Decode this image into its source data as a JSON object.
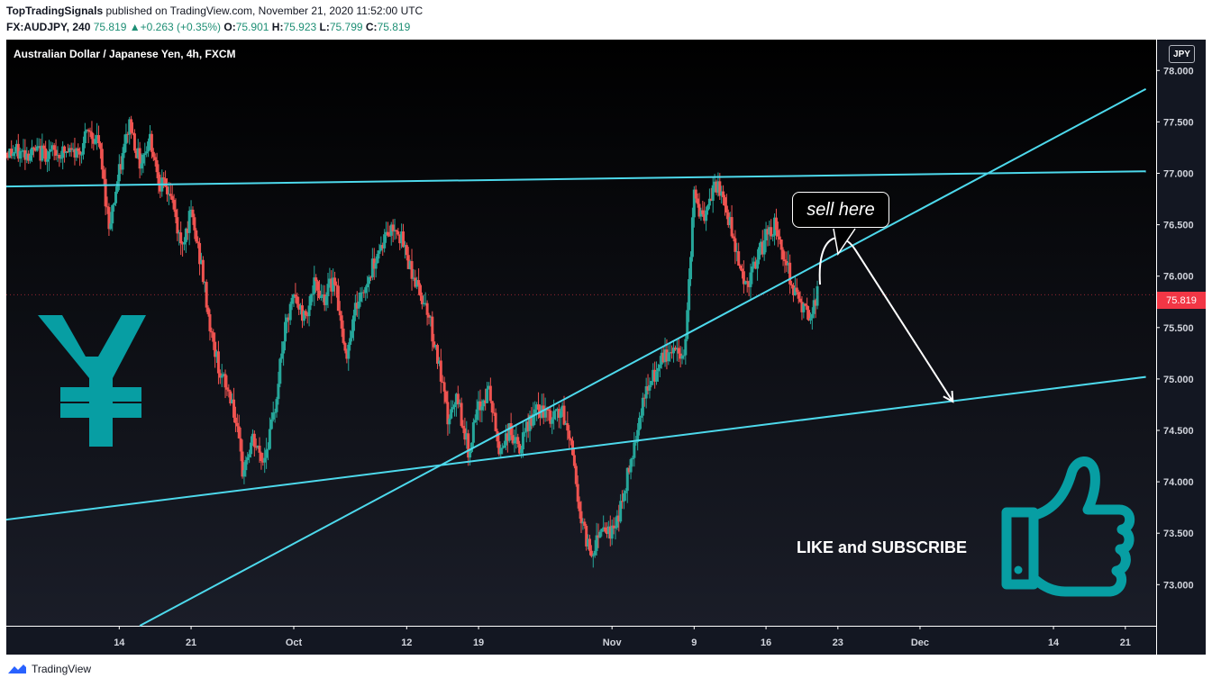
{
  "header": {
    "publisher": "TopTradingSignals",
    "published_text": " published on TradingView.com, November 21, 2020 11:52:00 UTC",
    "symbol_interval": "FX:AUDJPY, 240",
    "last": "75.819",
    "change_icon": "triangle-up-icon",
    "change": "+0.263 (+0.35%)",
    "o_label": "O:",
    "o_value": "75.901",
    "h_label": "H:",
    "h_value": "75.923",
    "l_label": "L:",
    "l_value": "75.799",
    "c_label": "C:",
    "c_value": "75.819"
  },
  "chart_title": "Australian Dollar / Japanese Yen, 4h, FXCM",
  "currency_label": "JPY",
  "price_tag": "75.819",
  "annotations": {
    "sell_text": "sell here",
    "like_text": "LIKE and SUBSCRIBE",
    "yen_icon": "yen-icon",
    "thumbs_up_icon": "thumbs-up-icon",
    "accent_color": "#079ea3"
  },
  "footer": {
    "brand": "TradingView"
  },
  "colors": {
    "background": "#131722",
    "up": "#26a69a",
    "down": "#ef5350",
    "trendline": "#4dd9ec",
    "arrow": "#ffffff",
    "price_tag": "#f23645"
  },
  "chart_data": {
    "type": "candlestick",
    "symbol": "FX:AUDJPY",
    "interval": "240",
    "ylim": [
      72.6,
      78.3
    ],
    "y_ticks": [
      73.0,
      73.5,
      74.0,
      74.5,
      75.0,
      75.5,
      76.0,
      76.5,
      77.0,
      77.5,
      78.0
    ],
    "y_tick_labels": [
      "73.000",
      "73.500",
      "74.000",
      "74.500",
      "75.000",
      "75.500",
      "76.000",
      "76.500",
      "77.000",
      "77.500",
      "78.000"
    ],
    "x_ticks": [
      "14",
      "21",
      "Oct",
      "12",
      "19",
      "Nov",
      "9",
      "16",
      "23",
      "Dec",
      "14",
      "21"
    ],
    "last_price": 75.819,
    "close_path": [
      {
        "x": "Sep 10",
        "price": 77.2
      },
      {
        "x": "Sep 11",
        "price": 77.4
      },
      {
        "x": "Sep 12",
        "price": 77.3
      },
      {
        "x": "Sep 13",
        "price": 76.5
      },
      {
        "x": "Sep 14",
        "price": 77.0
      },
      {
        "x": "Sep 15",
        "price": 77.5
      },
      {
        "x": "Sep 16",
        "price": 77.1
      },
      {
        "x": "Sep 17",
        "price": 77.35
      },
      {
        "x": "Sep 18",
        "price": 76.9
      },
      {
        "x": "Sep 19",
        "price": 76.8
      },
      {
        "x": "Sep 20",
        "price": 76.3
      },
      {
        "x": "Sep 21",
        "price": 76.6
      },
      {
        "x": "Sep 22",
        "price": 76.1
      },
      {
        "x": "Sep 23",
        "price": 75.4
      },
      {
        "x": "Sep 24",
        "price": 75.0
      },
      {
        "x": "Sep 25",
        "price": 74.8
      },
      {
        "x": "Sep 26",
        "price": 74.1
      },
      {
        "x": "Sep 27",
        "price": 74.4
      },
      {
        "x": "Sep 28",
        "price": 74.2
      },
      {
        "x": "Sep 29",
        "price": 74.6
      },
      {
        "x": "Sep 30",
        "price": 75.4
      },
      {
        "x": "Oct 1",
        "price": 75.8
      },
      {
        "x": "Oct 2",
        "price": 75.6
      },
      {
        "x": "Oct 3",
        "price": 75.9
      },
      {
        "x": "Oct 4",
        "price": 75.8
      },
      {
        "x": "Oct 5",
        "price": 76.0
      },
      {
        "x": "Oct 6",
        "price": 75.2
      },
      {
        "x": "Oct 7",
        "price": 75.7
      },
      {
        "x": "Oct 8",
        "price": 75.9
      },
      {
        "x": "Oct 9",
        "price": 76.2
      },
      {
        "x": "Oct 10",
        "price": 76.4
      },
      {
        "x": "Oct 11",
        "price": 76.5
      },
      {
        "x": "Oct 12",
        "price": 76.2
      },
      {
        "x": "Oct 13",
        "price": 75.9
      },
      {
        "x": "Oct 14",
        "price": 75.7
      },
      {
        "x": "Oct 15",
        "price": 75.2
      },
      {
        "x": "Oct 16",
        "price": 74.6
      },
      {
        "x": "Oct 17",
        "price": 74.8
      },
      {
        "x": "Oct 18",
        "price": 74.3
      },
      {
        "x": "Oct 19",
        "price": 74.7
      },
      {
        "x": "Oct 20",
        "price": 74.9
      },
      {
        "x": "Oct 21",
        "price": 74.3
      },
      {
        "x": "Oct 22",
        "price": 74.5
      },
      {
        "x": "Oct 23",
        "price": 74.3
      },
      {
        "x": "Oct 24",
        "price": 74.6
      },
      {
        "x": "Oct 25",
        "price": 74.7
      },
      {
        "x": "Oct 26",
        "price": 74.6
      },
      {
        "x": "Oct 27",
        "price": 74.7
      },
      {
        "x": "Oct 28",
        "price": 74.4
      },
      {
        "x": "Oct 29",
        "price": 73.6
      },
      {
        "x": "Oct 30",
        "price": 73.3
      },
      {
        "x": "Oct 31",
        "price": 73.6
      },
      {
        "x": "Nov 1",
        "price": 73.5
      },
      {
        "x": "Nov 2",
        "price": 73.8
      },
      {
        "x": "Nov 3",
        "price": 74.3
      },
      {
        "x": "Nov 4",
        "price": 74.8
      },
      {
        "x": "Nov 5",
        "price": 75.0
      },
      {
        "x": "Nov 6",
        "price": 75.2
      },
      {
        "x": "Nov 7",
        "price": 75.3
      },
      {
        "x": "Nov 8",
        "price": 75.2
      },
      {
        "x": "Nov 9",
        "price": 76.8
      },
      {
        "x": "Nov 10",
        "price": 76.5
      },
      {
        "x": "Nov 11",
        "price": 76.9
      },
      {
        "x": "Nov 12",
        "price": 76.7
      },
      {
        "x": "Nov 13",
        "price": 76.3
      },
      {
        "x": "Nov 14",
        "price": 75.9
      },
      {
        "x": "Nov 15",
        "price": 76.1
      },
      {
        "x": "Nov 16",
        "price": 76.4
      },
      {
        "x": "Nov 17",
        "price": 76.5
      },
      {
        "x": "Nov 18",
        "price": 76.1
      },
      {
        "x": "Nov 19",
        "price": 75.8
      },
      {
        "x": "Nov 20",
        "price": 75.6
      },
      {
        "x": "Nov 21",
        "price": 75.819
      }
    ],
    "trendlines": [
      {
        "name": "resistance",
        "from": {
          "x": "Sep 2",
          "price": 76.87
        },
        "to": {
          "x": "Dec 23",
          "price": 77.02
        }
      },
      {
        "name": "rising-trendline",
        "from": {
          "x": "Sep 16",
          "price": 72.6
        },
        "to": {
          "x": "Dec 23",
          "price": 77.82
        }
      },
      {
        "name": "lower-support",
        "from": {
          "x": "Sep 2",
          "price": 73.62
        },
        "to": {
          "x": "Dec 23",
          "price": 75.02
        }
      }
    ],
    "forecast_arrow": {
      "from": {
        "x": "Nov 21",
        "price": 75.9
      },
      "peak": {
        "x": "Nov 22",
        "price": 76.2
      },
      "to": {
        "x": "Dec 2",
        "price": 74.85
      }
    }
  }
}
